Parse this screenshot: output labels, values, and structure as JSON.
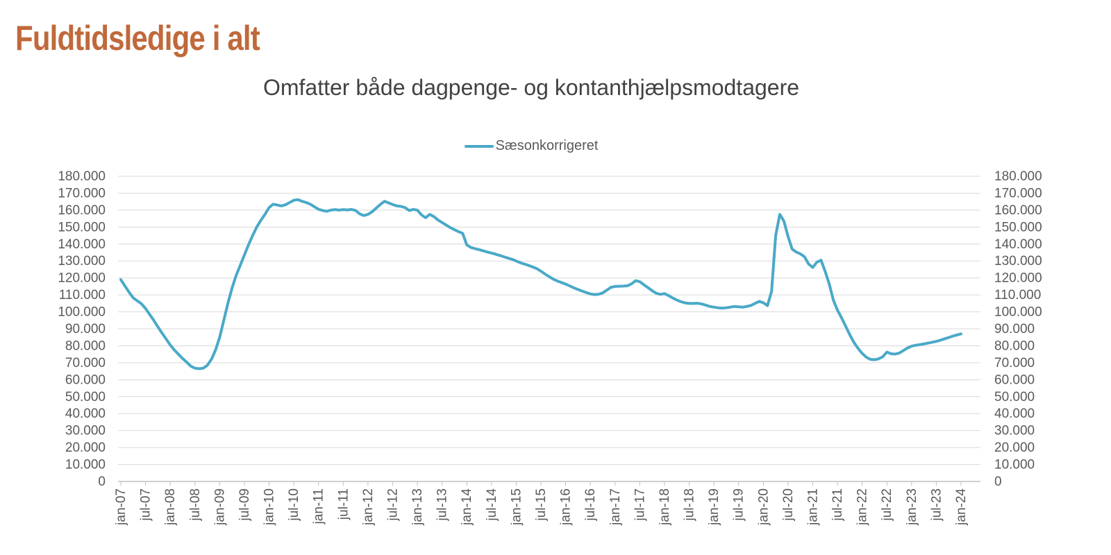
{
  "page_title": "Fuldtidsledige i alt",
  "colors": {
    "title": "#c0693a",
    "subtitle": "#424242",
    "axis_text": "#595959",
    "gridline": "#d9d9d9",
    "axis_line": "#bfbfbf",
    "series_line": "#4aa9c8",
    "background": "#ffffff"
  },
  "chart_data": {
    "type": "line",
    "title": "Omfatter både dagpenge- og kontanthjælpsmodtagere",
    "legend_entries": [
      {
        "label": "Sæsonkorrigeret",
        "color": "#4aa9c8"
      }
    ],
    "legend_position": "top-center",
    "grid": true,
    "y_axis_sides": "both",
    "ylim": [
      0,
      180000
    ],
    "y_tick_step": 10000,
    "y_tick_labels": [
      "0",
      "10.000",
      "20.000",
      "30.000",
      "40.000",
      "50.000",
      "60.000",
      "70.000",
      "80.000",
      "90.000",
      "100.000",
      "110.000",
      "120.000",
      "130.000",
      "140.000",
      "150.000",
      "160.000",
      "170.000",
      "180.000"
    ],
    "x_tick_labels": [
      "jan-07",
      "jul-07",
      "jan-08",
      "jul-08",
      "jan-09",
      "jul-09",
      "jan-10",
      "jul-10",
      "jan-11",
      "jul-11",
      "jan-12",
      "jul-12",
      "jan-13",
      "jul-13",
      "jan-14",
      "jul-14",
      "jan-15",
      "jul-15",
      "jan-16",
      "jul-16",
      "jan-17",
      "jul-17",
      "jan-18",
      "jul-18",
      "jan-19",
      "jul-19",
      "jan-20",
      "jul-20",
      "jan-21",
      "jul-21",
      "jan-22",
      "jul-22",
      "jan-23",
      "jul-23",
      "jan-24"
    ],
    "x_unit": "month",
    "x_range": "jan-07 to jan-24, monthly",
    "series": [
      {
        "name": "Sæsonkorrigeret",
        "color": "#4aa9c8",
        "values": [
          119000,
          115300,
          111600,
          108300,
          106500,
          104800,
          102000,
          98500,
          95000,
          91200,
          87500,
          84000,
          80500,
          77500,
          75000,
          72500,
          70300,
          68000,
          66800,
          66500,
          66800,
          68500,
          72000,
          77500,
          85000,
          95000,
          105000,
          114000,
          121500,
          127500,
          133500,
          139500,
          145000,
          150000,
          154000,
          157500,
          161500,
          163500,
          163000,
          162500,
          163200,
          164500,
          165800,
          166200,
          165200,
          164500,
          163500,
          162000,
          160500,
          159800,
          159300,
          160000,
          160300,
          160000,
          160300,
          160100,
          160400,
          159800,
          157800,
          156800,
          157500,
          159000,
          161200,
          163300,
          165200,
          164300,
          163300,
          162500,
          162200,
          161500,
          159800,
          160400,
          160000,
          157200,
          155500,
          157500,
          156200,
          154200,
          152700,
          151200,
          149700,
          148500,
          147300,
          146300,
          139500,
          138000,
          137300,
          136700,
          136000,
          135300,
          134700,
          134000,
          133300,
          132500,
          131700,
          131000,
          130000,
          129000,
          128200,
          127400,
          126500,
          125500,
          124000,
          122300,
          120800,
          119300,
          118200,
          117300,
          116400,
          115300,
          114200,
          113200,
          112300,
          111400,
          110600,
          110200,
          110400,
          111200,
          112800,
          114500,
          115000,
          115100,
          115200,
          115400,
          116500,
          118400,
          117800,
          116000,
          114300,
          112500,
          111000,
          110300,
          110800,
          109600,
          108200,
          107000,
          106000,
          105300,
          105000,
          105000,
          105100,
          104700,
          104000,
          103200,
          102800,
          102400,
          102200,
          102400,
          102800,
          103200,
          103000,
          102800,
          103200,
          103800,
          105000,
          106200,
          105400,
          103700,
          112000,
          145000,
          157500,
          153500,
          144500,
          137000,
          135300,
          134200,
          132500,
          128200,
          126200,
          129300,
          130500,
          124000,
          116500,
          107000,
          101000,
          96500,
          91500,
          86500,
          82000,
          78500,
          75500,
          73300,
          72000,
          71800,
          72300,
          73500,
          76300,
          75300,
          75100,
          75700,
          77200,
          78700,
          79800,
          80300,
          80700,
          81100,
          81600,
          82100,
          82600,
          83300,
          84100,
          84900,
          85700,
          86400,
          87000
        ]
      }
    ]
  }
}
